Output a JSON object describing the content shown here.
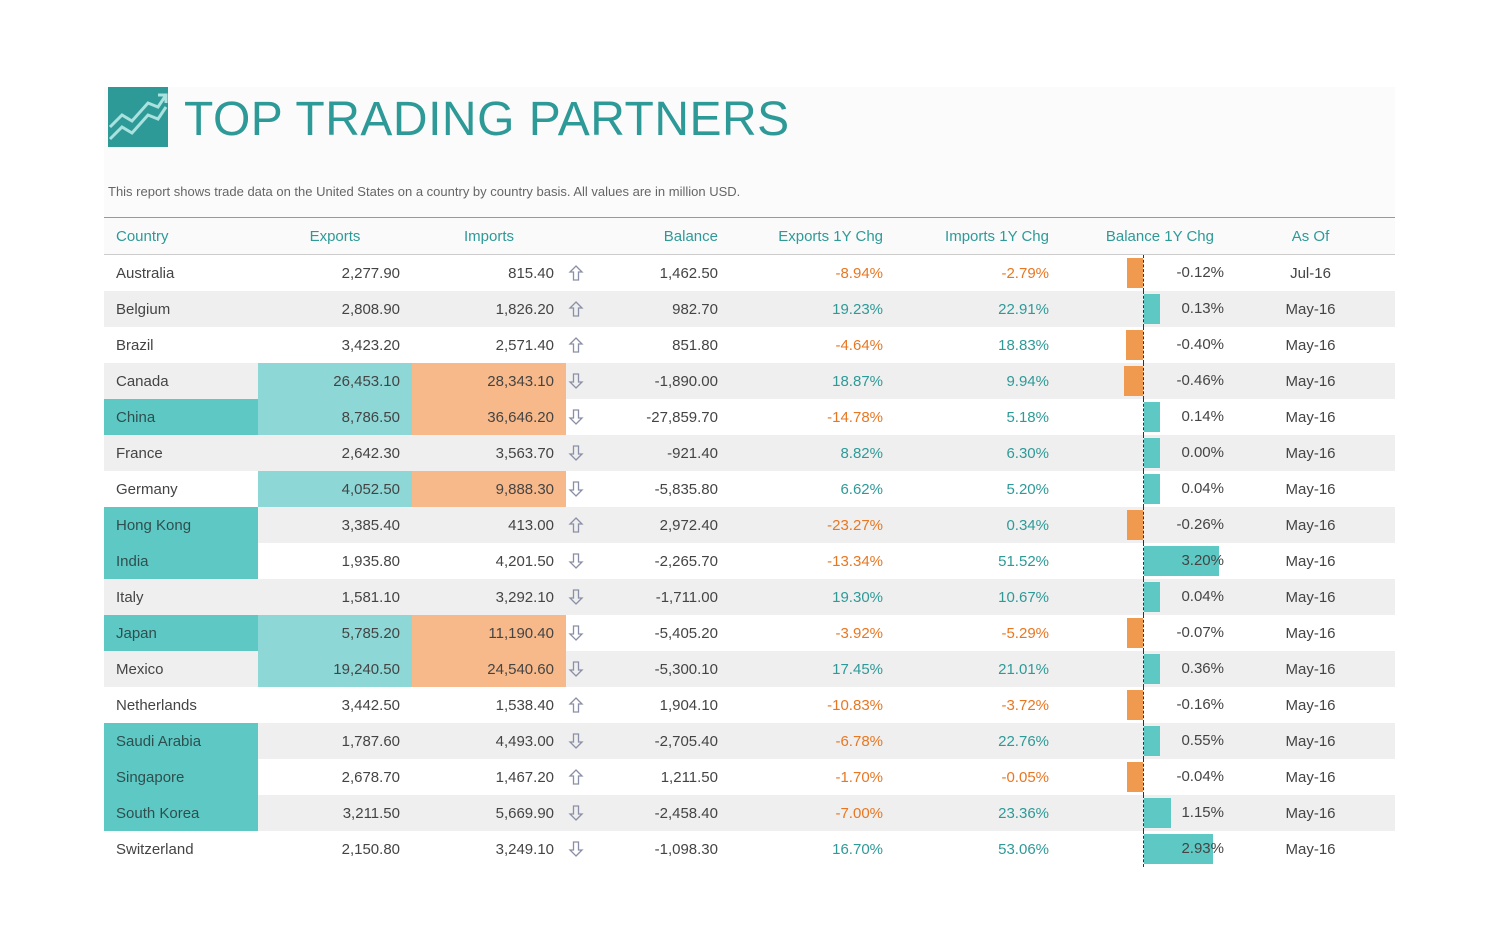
{
  "title": "TOP TRADING PARTNERS",
  "subtitle": "This report shows trade data on the United States on a country by country basis. All values are in million USD.",
  "headers": {
    "country": "Country",
    "exports": "Exports",
    "imports": "Imports",
    "balance": "Balance",
    "exports_chg": "Exports 1Y Chg",
    "imports_chg": "Imports 1Y Chg",
    "balance_chg": "Balance 1Y Chg",
    "as_of": "As Of"
  },
  "colors": {
    "accent": "#2e9a98",
    "positive": "#2e9a98",
    "negative": "#e87722",
    "highlight_country": "#5ec9c4",
    "highlight_exports": "#8dd7d6",
    "highlight_imports": "#f7b98a"
  },
  "rows": [
    {
      "country": "Australia",
      "exports": "2,277.90",
      "imports": "815.40",
      "imports_trend": "up",
      "balance": "1,462.50",
      "exports_chg": "-8.94%",
      "imports_chg": "-2.79%",
      "balance_chg": "-0.12%",
      "balance_chg_value": -0.12,
      "as_of": "Jul-16",
      "hl_country": false,
      "hl_exports": false,
      "hl_imports": false
    },
    {
      "country": "Belgium",
      "exports": "2,808.90",
      "imports": "1,826.20",
      "imports_trend": "up",
      "balance": "982.70",
      "exports_chg": "19.23%",
      "imports_chg": "22.91%",
      "balance_chg": "0.13%",
      "balance_chg_value": 0.13,
      "as_of": "May-16",
      "hl_country": false,
      "hl_exports": false,
      "hl_imports": false
    },
    {
      "country": "Brazil",
      "exports": "3,423.20",
      "imports": "2,571.40",
      "imports_trend": "up",
      "balance": "851.80",
      "exports_chg": "-4.64%",
      "imports_chg": "18.83%",
      "balance_chg": "-0.40%",
      "balance_chg_value": -0.4,
      "as_of": "May-16",
      "hl_country": false,
      "hl_exports": false,
      "hl_imports": false
    },
    {
      "country": "Canada",
      "exports": "26,453.10",
      "imports": "28,343.10",
      "imports_trend": "down",
      "balance": "-1,890.00",
      "exports_chg": "18.87%",
      "imports_chg": "9.94%",
      "balance_chg": "-0.46%",
      "balance_chg_value": -0.46,
      "as_of": "May-16",
      "hl_country": false,
      "hl_exports": true,
      "hl_imports": true
    },
    {
      "country": "China",
      "exports": "8,786.50",
      "imports": "36,646.20",
      "imports_trend": "down",
      "balance": "-27,859.70",
      "exports_chg": "-14.78%",
      "imports_chg": "5.18%",
      "balance_chg": "0.14%",
      "balance_chg_value": 0.14,
      "as_of": "May-16",
      "hl_country": true,
      "hl_exports": true,
      "hl_imports": true
    },
    {
      "country": "France",
      "exports": "2,642.30",
      "imports": "3,563.70",
      "imports_trend": "down",
      "balance": "-921.40",
      "exports_chg": "8.82%",
      "imports_chg": "6.30%",
      "balance_chg": "0.00%",
      "balance_chg_value": 0.0,
      "as_of": "May-16",
      "hl_country": false,
      "hl_exports": false,
      "hl_imports": false
    },
    {
      "country": "Germany",
      "exports": "4,052.50",
      "imports": "9,888.30",
      "imports_trend": "down",
      "balance": "-5,835.80",
      "exports_chg": "6.62%",
      "imports_chg": "5.20%",
      "balance_chg": "0.04%",
      "balance_chg_value": 0.04,
      "as_of": "May-16",
      "hl_country": false,
      "hl_exports": true,
      "hl_imports": true
    },
    {
      "country": "Hong Kong",
      "exports": "3,385.40",
      "imports": "413.00",
      "imports_trend": "up",
      "balance": "2,972.40",
      "exports_chg": "-23.27%",
      "imports_chg": "0.34%",
      "balance_chg": "-0.26%",
      "balance_chg_value": -0.26,
      "as_of": "May-16",
      "hl_country": true,
      "hl_exports": false,
      "hl_imports": false
    },
    {
      "country": "India",
      "exports": "1,935.80",
      "imports": "4,201.50",
      "imports_trend": "down",
      "balance": "-2,265.70",
      "exports_chg": "-13.34%",
      "imports_chg": "51.52%",
      "balance_chg": "3.20%",
      "balance_chg_value": 3.2,
      "as_of": "May-16",
      "hl_country": true,
      "hl_exports": false,
      "hl_imports": false
    },
    {
      "country": "Italy",
      "exports": "1,581.10",
      "imports": "3,292.10",
      "imports_trend": "down",
      "balance": "-1,711.00",
      "exports_chg": "19.30%",
      "imports_chg": "10.67%",
      "balance_chg": "0.04%",
      "balance_chg_value": 0.04,
      "as_of": "May-16",
      "hl_country": false,
      "hl_exports": false,
      "hl_imports": false
    },
    {
      "country": "Japan",
      "exports": "5,785.20",
      "imports": "11,190.40",
      "imports_trend": "down",
      "balance": "-5,405.20",
      "exports_chg": "-3.92%",
      "imports_chg": "-5.29%",
      "balance_chg": "-0.07%",
      "balance_chg_value": -0.07,
      "as_of": "May-16",
      "hl_country": true,
      "hl_exports": true,
      "hl_imports": true
    },
    {
      "country": "Mexico",
      "exports": "19,240.50",
      "imports": "24,540.60",
      "imports_trend": "down",
      "balance": "-5,300.10",
      "exports_chg": "17.45%",
      "imports_chg": "21.01%",
      "balance_chg": "0.36%",
      "balance_chg_value": 0.36,
      "as_of": "May-16",
      "hl_country": false,
      "hl_exports": true,
      "hl_imports": true
    },
    {
      "country": "Netherlands",
      "exports": "3,442.50",
      "imports": "1,538.40",
      "imports_trend": "up",
      "balance": "1,904.10",
      "exports_chg": "-10.83%",
      "imports_chg": "-3.72%",
      "balance_chg": "-0.16%",
      "balance_chg_value": -0.16,
      "as_of": "May-16",
      "hl_country": false,
      "hl_exports": false,
      "hl_imports": false
    },
    {
      "country": "Saudi Arabia",
      "exports": "1,787.60",
      "imports": "4,493.00",
      "imports_trend": "down",
      "balance": "-2,705.40",
      "exports_chg": "-6.78%",
      "imports_chg": "22.76%",
      "balance_chg": "0.55%",
      "balance_chg_value": 0.55,
      "as_of": "May-16",
      "hl_country": true,
      "hl_exports": false,
      "hl_imports": false
    },
    {
      "country": "Singapore",
      "exports": "2,678.70",
      "imports": "1,467.20",
      "imports_trend": "up",
      "balance": "1,211.50",
      "exports_chg": "-1.70%",
      "imports_chg": "-0.05%",
      "balance_chg": "-0.04%",
      "balance_chg_value": -0.04,
      "as_of": "May-16",
      "hl_country": true,
      "hl_exports": false,
      "hl_imports": false
    },
    {
      "country": "South Korea",
      "exports": "3,211.50",
      "imports": "5,669.90",
      "imports_trend": "down",
      "balance": "-2,458.40",
      "exports_chg": "-7.00%",
      "imports_chg": "23.36%",
      "balance_chg": "1.15%",
      "balance_chg_value": 1.15,
      "as_of": "May-16",
      "hl_country": true,
      "hl_exports": false,
      "hl_imports": false
    },
    {
      "country": "Switzerland",
      "exports": "2,150.80",
      "imports": "3,249.10",
      "imports_trend": "down",
      "balance": "-1,098.30",
      "exports_chg": "16.70%",
      "imports_chg": "53.06%",
      "balance_chg": "2.93%",
      "balance_chg_value": 2.93,
      "as_of": "May-16",
      "hl_country": false,
      "hl_exports": false,
      "hl_imports": false
    }
  ]
}
